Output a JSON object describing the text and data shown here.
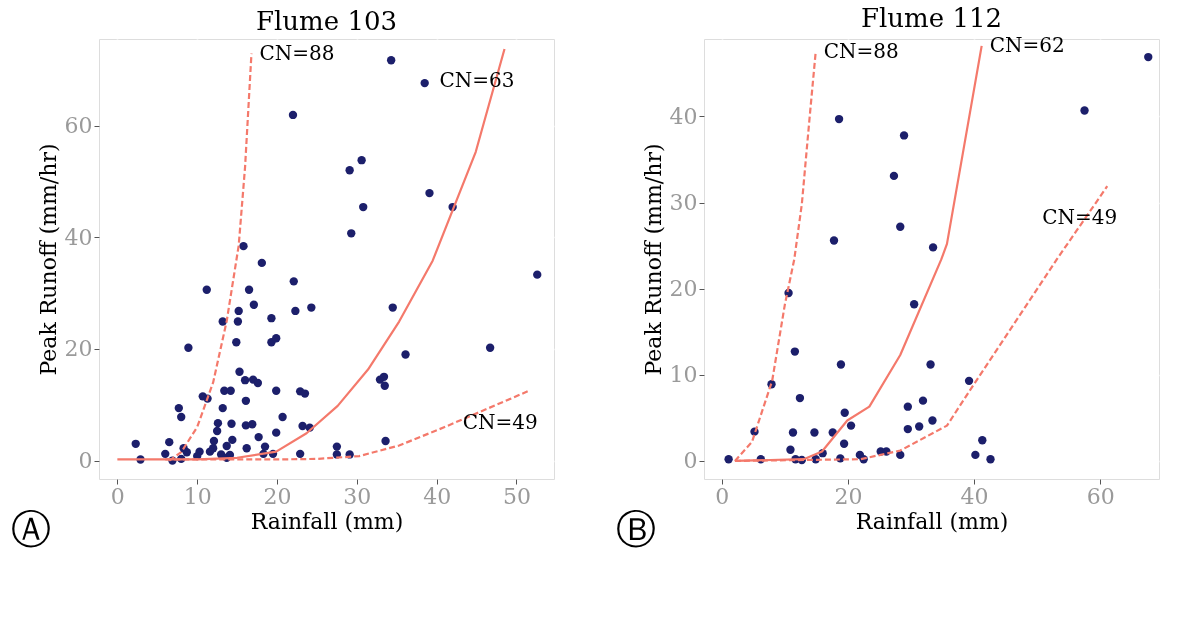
{
  "chart_data": [
    {
      "type": "scatter",
      "title": "Flume 103",
      "xlabel": "Rainfall (mm)",
      "ylabel": "Peak Runoff (mm/hr)",
      "xlim": [
        -2.3,
        54.7
      ],
      "ylim": [
        -3.3,
        75.5
      ],
      "xticks": [
        0,
        10,
        20,
        30,
        40,
        50
      ],
      "yticks": [
        0,
        20,
        40,
        60
      ],
      "grid": true,
      "series": [
        {
          "marker": "circle",
          "color": "#1c1f6b",
          "x": [
            52.6,
            11.2,
            22.1,
            16.5,
            17.1,
            15.2,
            22.3,
            24.3,
            34.5,
            13.2,
            15.1,
            19.3,
            14.9,
            19.3,
            19.9,
            8.9,
            36.1,
            46.7,
            15.3,
            16.0,
            17.0,
            17.6,
            32.9,
            33.4,
            33.5,
            13.4,
            14.2,
            19.9,
            22.9,
            23.5,
            10.7,
            11.3,
            16.1,
            7.7,
            13.2,
            8.0,
            20.7,
            12.6,
            14.3,
            16.1,
            16.9,
            12.5,
            19.9,
            23.2,
            24.1,
            17.7,
            12.1,
            14.4,
            2.3,
            6.5,
            33.6,
            27.5,
            18.5,
            13.7,
            8.3,
            12.0,
            6.0,
            8.7,
            10.3,
            11.6,
            13.0,
            14.1,
            16.2,
            19.5,
            22.9,
            27.5,
            29.1,
            18.3,
            2.9,
            6.9,
            8.0,
            10.0,
            13.7,
            34.3,
            38.5,
            22.0,
            30.6,
            29.1,
            39.1,
            30.8,
            42.0,
            29.3,
            15.8,
            18.1
          ],
          "values": [
            33.3,
            30.6,
            32.1,
            30.6,
            27.9,
            26.8,
            26.8,
            27.4,
            27.4,
            24.9,
            24.9,
            25.5,
            21.2,
            21.2,
            21.9,
            20.2,
            19.0,
            20.2,
            15.9,
            14.4,
            14.5,
            13.9,
            14.5,
            15.0,
            13.4,
            12.5,
            12.5,
            12.5,
            12.4,
            12.0,
            11.5,
            11.1,
            10.7,
            9.4,
            9.4,
            7.8,
            7.8,
            6.7,
            6.6,
            6.3,
            6.5,
            5.3,
            5.0,
            6.2,
            5.9,
            4.2,
            3.5,
            3.7,
            3.0,
            3.3,
            3.5,
            2.5,
            2.5,
            2.6,
            2.2,
            2.2,
            1.2,
            1.5,
            1.6,
            1.6,
            1.1,
            1.0,
            2.2,
            1.2,
            1.2,
            1.1,
            1.1,
            1.2,
            0.2,
            0.0,
            0.3,
            0.8,
            0.5,
            71.7,
            67.6,
            61.9,
            53.8,
            52.0,
            47.9,
            45.4,
            45.4,
            40.7,
            38.4,
            35.4
          ]
        },
        {
          "type": "line",
          "name": "CN=88",
          "line_style": "dashed",
          "color": "#f4796b",
          "x": [
            6.5,
            8,
            10,
            12,
            13.7,
            15.2,
            16,
            16.8
          ],
          "values": [
            0,
            1.5,
            6,
            14,
            25,
            38.5,
            52.6,
            72.9
          ]
        },
        {
          "type": "line",
          "name": "CN=63",
          "line_style": "solid",
          "color": "#f4796b",
          "x": [
            0,
            10,
            15,
            19.9,
            23.7,
            27.6,
            31.4,
            35.3,
            39.5,
            44.9,
            48.5
          ],
          "values": [
            0.2,
            0.2,
            0.5,
            1.6,
            4.9,
            9.8,
            16.3,
            24.9,
            35.8,
            55.3,
            73.7
          ]
        },
        {
          "type": "line",
          "name": "CN=49",
          "line_style": "dashed",
          "color": "#f4796b",
          "x": [
            6,
            20,
            25,
            30.3,
            35.3,
            41.0,
            51.4
          ],
          "values": [
            0.2,
            0.2,
            0.3,
            0.8,
            2.7,
            6.0,
            12.4
          ]
        }
      ],
      "annotations": [
        "Ⓐ"
      ]
    },
    {
      "type": "scatter",
      "title": "Flume 112",
      "xlabel": "Rainfall (mm)",
      "ylabel": "Peak Runoff (mm/hr)",
      "xlim": [
        -2.8,
        69.3
      ],
      "ylim": [
        -2.1,
        49
      ],
      "xticks": [
        0,
        20,
        40,
        60
      ],
      "yticks": [
        0,
        10,
        20,
        30,
        40
      ],
      "grid": true,
      "series": [
        {
          "marker": "circle",
          "color": "#1c1f6b",
          "x": [
            1.1,
            6.2,
            5.2,
            7.9,
            10.6,
            11.6,
            12.4,
            11.3,
            10.9,
            11.7,
            12.7,
            14.7,
            14.9,
            16.0,
            17.6,
            18.9,
            19.5,
            20.5,
            19.4,
            18.8,
            21.9,
            22.5,
            25.2,
            26.1,
            28.3,
            30.5,
            29.5,
            29.5,
            31.3,
            31.9,
            33.1,
            33.4,
            39.2,
            40.2,
            41.3,
            42.6,
            67.6,
            57.5,
            18.6,
            28.9,
            27.3,
            28.3,
            17.8,
            33.5
          ],
          "values": [
            0.2,
            0.2,
            3.4,
            8.9,
            19.5,
            12.7,
            7.3,
            3.3,
            1.3,
            0.2,
            0.1,
            3.3,
            0.2,
            0.9,
            3.3,
            11.2,
            5.6,
            4.1,
            2.0,
            0.3,
            0.7,
            0.2,
            1.1,
            1.1,
            0.7,
            18.2,
            6.3,
            3.7,
            4.0,
            7.0,
            11.2,
            4.7,
            9.3,
            0.7,
            2.4,
            0.2,
            46.9,
            40.7,
            39.7,
            37.8,
            33.1,
            27.2,
            25.6,
            24.8
          ]
        },
        {
          "type": "line",
          "name": "CN=88",
          "line_style": "dashed",
          "color": "#f4796b",
          "x": [
            2.1,
            4.8,
            8.0,
            10.0,
            11.5,
            12.7,
            14.0,
            14.9
          ],
          "values": [
            0,
            2.2,
            9.3,
            18.1,
            23.4,
            29.8,
            40.4,
            47.5
          ]
        },
        {
          "type": "line",
          "name": "CN=62",
          "line_style": "solid",
          "color": "#f4796b",
          "x": [
            2.1,
            13,
            15.9,
            19.9,
            23.4,
            28.3,
            34.8,
            35.7,
            41.2
          ],
          "values": [
            0,
            0.2,
            1.1,
            4.7,
            6.3,
            12.3,
            23.4,
            25.2,
            48.2
          ]
        },
        {
          "type": "line",
          "name": "CN=49",
          "line_style": "dashed",
          "color": "#f4796b",
          "x": [
            2.1,
            22,
            28.3,
            35.7,
            39.7,
            53.1,
            61.1
          ],
          "values": [
            0,
            0.2,
            1.2,
            4.1,
            8.6,
            23.4,
            31.9
          ]
        }
      ],
      "annotations": [
        "Ⓑ"
      ]
    }
  ]
}
